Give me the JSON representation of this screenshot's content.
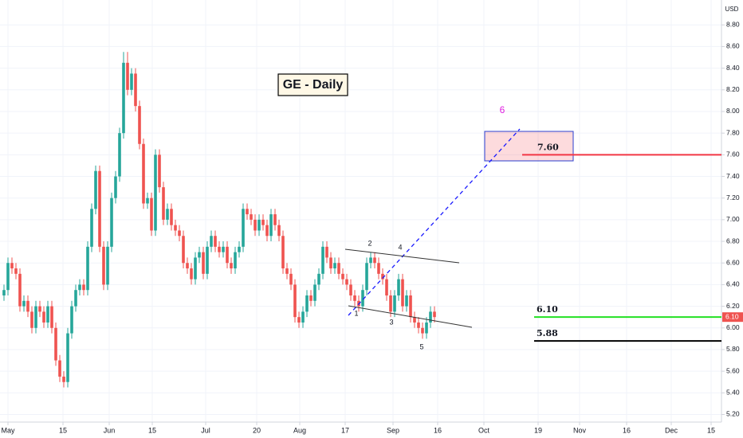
{
  "chart_data": {
    "type": "candlestick",
    "title": "GE - Daily",
    "y_unit": "USD",
    "up_color": "#26a69a",
    "down_color": "#ef5350",
    "grid": true,
    "xlim": [
      -1,
      180
    ],
    "xticks": [
      {
        "value": 1.0,
        "label": "May"
      },
      {
        "value": 14.8,
        "label": "15"
      },
      {
        "value": 26.4,
        "label": "Jun"
      },
      {
        "value": 37.2,
        "label": "15"
      },
      {
        "value": 50.6,
        "label": "Jul"
      },
      {
        "value": 63.4,
        "label": "20"
      },
      {
        "value": 74.2,
        "label": "Aug"
      },
      {
        "value": 85.6,
        "label": "17"
      },
      {
        "value": 97.6,
        "label": "Sep"
      },
      {
        "value": 108.8,
        "label": "16"
      },
      {
        "value": 120.4,
        "label": "Oct"
      },
      {
        "value": 134,
        "label": "19"
      },
      {
        "value": 144.4,
        "label": "Nov"
      },
      {
        "value": 156.2,
        "label": "16"
      },
      {
        "value": 167.4,
        "label": "Dec"
      },
      {
        "value": 177.4,
        "label": "15"
      }
    ],
    "ylim": [
      5.13,
      9.03
    ],
    "yticks": [
      {
        "value": 5.2,
        "label": "5.20"
      },
      {
        "value": 5.4,
        "label": "5.40"
      },
      {
        "value": 5.6,
        "label": "5.60"
      },
      {
        "value": 5.8,
        "label": "5.80"
      },
      {
        "value": 6.0,
        "label": "6.00"
      },
      {
        "value": 6.2,
        "label": "6.20"
      },
      {
        "value": 6.4,
        "label": "6.40"
      },
      {
        "value": 6.6,
        "label": "6.60"
      },
      {
        "value": 6.8,
        "label": "6.80"
      },
      {
        "value": 7.0,
        "label": "7.00"
      },
      {
        "value": 7.2,
        "label": "7.20"
      },
      {
        "value": 7.4,
        "label": "7.40"
      },
      {
        "value": 7.6,
        "label": "7.60"
      },
      {
        "value": 7.8,
        "label": "7.80"
      },
      {
        "value": 8.0,
        "label": "8.00"
      },
      {
        "value": 8.2,
        "label": "8.20"
      },
      {
        "value": 8.4,
        "label": "8.40"
      },
      {
        "value": 8.6,
        "label": "8.60"
      },
      {
        "value": 8.8,
        "label": "8.80"
      }
    ],
    "x": [
      0,
      1,
      2,
      3,
      4,
      5,
      6,
      7,
      8,
      9,
      10,
      11,
      12,
      13,
      14,
      15,
      16,
      17,
      18,
      19,
      20,
      21,
      22,
      23,
      24,
      25,
      26,
      27,
      28,
      29,
      30,
      31,
      32,
      33,
      34,
      35,
      36,
      37,
      38,
      39,
      40,
      41,
      42,
      43,
      44,
      45,
      46,
      47,
      48,
      49,
      50,
      51,
      52,
      53,
      54,
      55,
      56,
      57,
      58,
      59,
      60,
      61,
      62,
      63,
      64,
      65,
      66,
      67,
      68,
      69,
      70,
      71,
      72,
      73,
      74,
      75,
      76,
      77,
      78,
      79,
      80,
      81,
      82,
      83,
      84,
      85,
      86,
      87,
      88,
      89,
      90,
      91,
      92,
      93,
      94,
      95,
      96,
      97,
      98,
      99,
      100,
      101,
      102,
      103,
      104,
      105,
      106,
      107,
      108
    ],
    "open": [
      6.3,
      6.35,
      6.6,
      6.55,
      6.5,
      6.2,
      6.25,
      6.15,
      6.0,
      6.2,
      6.15,
      6.05,
      6.2,
      6.0,
      5.7,
      5.55,
      5.5,
      5.95,
      6.2,
      6.35,
      6.4,
      6.35,
      6.75,
      7.1,
      7.45,
      6.75,
      6.4,
      6.75,
      7.2,
      7.4,
      7.8,
      8.45,
      8.2,
      8.35,
      8.05,
      7.7,
      7.15,
      7.2,
      6.9,
      7.6,
      7.3,
      7.0,
      7.1,
      6.95,
      6.9,
      6.85,
      6.6,
      6.55,
      6.45,
      6.65,
      6.7,
      6.5,
      6.75,
      6.85,
      6.75,
      6.7,
      6.75,
      6.6,
      6.55,
      6.7,
      6.75,
      7.1,
      7.05,
      7.0,
      6.9,
      7.0,
      6.95,
      6.85,
      7.05,
      6.95,
      6.85,
      6.55,
      6.5,
      6.4,
      6.1,
      6.05,
      6.15,
      6.3,
      6.25,
      6.4,
      6.5,
      6.75,
      6.65,
      6.55,
      6.6,
      6.5,
      6.45,
      6.4,
      6.3,
      6.25,
      6.2,
      6.35,
      6.6,
      6.65,
      6.6,
      6.5,
      6.45,
      6.3,
      6.15,
      6.3,
      6.45,
      6.2,
      6.3,
      6.1,
      6.05,
      6.0,
      5.95,
      6.05,
      6.15
    ],
    "high": [
      6.4,
      6.65,
      6.65,
      6.6,
      6.55,
      6.3,
      6.3,
      6.2,
      6.25,
      6.25,
      6.2,
      6.25,
      6.25,
      6.05,
      5.75,
      5.6,
      6.0,
      6.25,
      6.4,
      6.45,
      6.45,
      6.8,
      7.15,
      7.5,
      7.5,
      6.8,
      6.8,
      7.25,
      7.45,
      7.85,
      8.55,
      8.55,
      8.4,
      8.4,
      8.1,
      7.75,
      7.25,
      7.25,
      7.65,
      7.65,
      7.35,
      7.15,
      7.15,
      7.0,
      6.95,
      6.9,
      6.65,
      6.6,
      6.7,
      6.75,
      6.75,
      6.8,
      6.9,
      6.9,
      6.8,
      6.8,
      6.8,
      6.65,
      6.75,
      6.8,
      7.15,
      7.15,
      7.1,
      7.05,
      7.05,
      7.05,
      7.0,
      7.1,
      7.1,
      7.0,
      6.9,
      6.6,
      6.55,
      6.45,
      6.15,
      6.2,
      6.35,
      6.35,
      6.45,
      6.55,
      6.8,
      6.8,
      6.7,
      6.65,
      6.65,
      6.55,
      6.5,
      6.45,
      6.35,
      6.3,
      6.4,
      6.65,
      6.7,
      6.7,
      6.65,
      6.55,
      6.5,
      6.35,
      6.35,
      6.5,
      6.5,
      6.35,
      6.35,
      6.15,
      6.1,
      6.05,
      6.1,
      6.2,
      6.2
    ],
    "low": [
      6.25,
      6.3,
      6.5,
      6.45,
      6.15,
      6.15,
      6.1,
      5.95,
      5.95,
      6.1,
      6.0,
      6.0,
      5.95,
      5.65,
      5.5,
      5.45,
      5.45,
      5.9,
      6.15,
      6.3,
      6.3,
      6.3,
      6.7,
      7.05,
      6.7,
      6.35,
      6.35,
      6.7,
      7.15,
      7.35,
      7.75,
      8.15,
      8.15,
      8.0,
      7.65,
      7.1,
      7.1,
      6.85,
      6.85,
      7.25,
      6.95,
      6.95,
      6.9,
      6.85,
      6.8,
      6.55,
      6.5,
      6.4,
      6.4,
      6.6,
      6.45,
      6.45,
      6.7,
      6.7,
      6.65,
      6.65,
      6.55,
      6.5,
      6.5,
      6.65,
      6.7,
      7.0,
      6.95,
      6.85,
      6.85,
      6.9,
      6.8,
      6.8,
      6.9,
      6.8,
      6.5,
      6.45,
      6.35,
      6.05,
      6.0,
      6.0,
      6.1,
      6.2,
      6.2,
      6.35,
      6.45,
      6.6,
      6.5,
      6.5,
      6.45,
      6.4,
      6.35,
      6.25,
      6.2,
      6.15,
      6.15,
      6.3,
      6.55,
      6.55,
      6.45,
      6.4,
      6.25,
      6.1,
      6.1,
      6.25,
      6.15,
      6.15,
      6.05,
      6.0,
      5.95,
      5.9,
      5.9,
      6.0,
      6.05
    ],
    "close": [
      6.35,
      6.6,
      6.55,
      6.5,
      6.2,
      6.25,
      6.15,
      6.0,
      6.2,
      6.15,
      6.05,
      6.2,
      6.0,
      5.7,
      5.55,
      5.5,
      5.95,
      6.2,
      6.35,
      6.4,
      6.35,
      6.75,
      7.1,
      7.45,
      6.75,
      6.4,
      6.75,
      7.2,
      7.4,
      7.8,
      8.45,
      8.2,
      8.35,
      8.05,
      7.7,
      7.15,
      7.2,
      6.9,
      7.6,
      7.3,
      7.0,
      7.1,
      6.95,
      6.9,
      6.85,
      6.6,
      6.55,
      6.45,
      6.65,
      6.7,
      6.5,
      6.75,
      6.85,
      6.75,
      6.7,
      6.75,
      6.6,
      6.55,
      6.7,
      6.75,
      7.1,
      7.05,
      7.0,
      6.9,
      7.0,
      6.95,
      6.85,
      7.05,
      6.95,
      6.85,
      6.55,
      6.5,
      6.4,
      6.1,
      6.05,
      6.15,
      6.3,
      6.25,
      6.4,
      6.5,
      6.75,
      6.65,
      6.55,
      6.6,
      6.5,
      6.45,
      6.4,
      6.3,
      6.25,
      6.2,
      6.35,
      6.6,
      6.65,
      6.6,
      6.5,
      6.45,
      6.3,
      6.15,
      6.3,
      6.45,
      6.2,
      6.3,
      6.1,
      6.05,
      6.0,
      5.95,
      6.05,
      6.15,
      6.1
    ],
    "last_price": {
      "value": 6.1,
      "label": "6.10"
    },
    "levels": [
      {
        "value": 7.6,
        "label": "7.60",
        "color": "#f23645"
      },
      {
        "value": 6.1,
        "label": "6.10",
        "color": "#22e022"
      },
      {
        "value": 5.88,
        "label": "5.88",
        "color": "#000000"
      }
    ],
    "waves": [
      "1",
      "2",
      "3",
      "4",
      "5",
      "6"
    ]
  }
}
